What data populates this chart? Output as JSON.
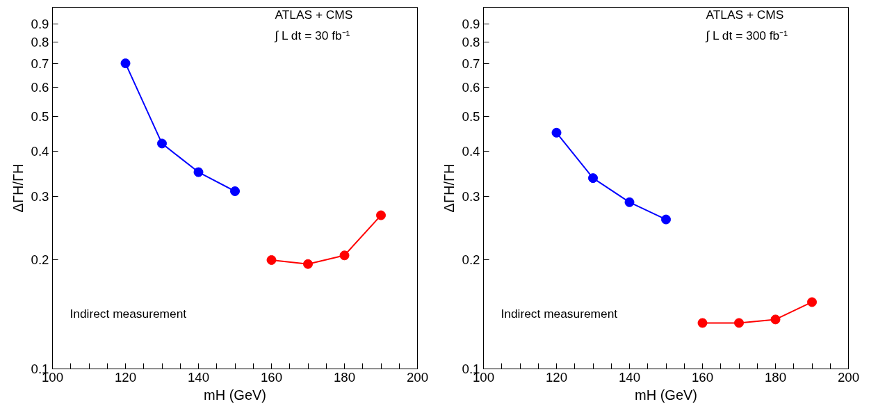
{
  "chart_data": [
    {
      "type": "line",
      "xlabel": "mH (GeV)",
      "ylabel": "ΔΓH/ΓH",
      "log": "y",
      "grid": false,
      "marker": "circle",
      "line_style": "solid",
      "xlim": [
        100,
        200
      ],
      "ylim": [
        0.1,
        1
      ],
      "xticks": [
        100,
        {
          "value": 105,
          "label": null
        },
        {
          "value": 110,
          "label": null
        },
        {
          "value": 115,
          "label": null
        },
        120,
        {
          "value": 125,
          "label": null
        },
        {
          "value": 130,
          "label": null
        },
        {
          "value": 135,
          "label": null
        },
        140,
        {
          "value": 145,
          "label": null
        },
        {
          "value": 150,
          "label": null
        },
        {
          "value": 155,
          "label": null
        },
        160,
        {
          "value": 165,
          "label": null
        },
        {
          "value": 170,
          "label": null
        },
        {
          "value": 175,
          "label": null
        },
        180,
        {
          "value": 185,
          "label": null
        },
        {
          "value": 190,
          "label": null
        },
        {
          "value": 195,
          "label": null
        },
        200
      ],
      "yticks": [
        0.1,
        0.2,
        0.3,
        0.4,
        0.5,
        0.6,
        0.7,
        0.8,
        0.9
      ],
      "annotations": [
        "ATLAS + CMS",
        "∫ L dt = 30 fb⁻¹",
        "Indirect measurement"
      ],
      "series": [
        {
          "color": "#0000ff",
          "x": [
            120,
            130,
            140,
            150
          ],
          "values": [
            0.7,
            0.42,
            0.35,
            0.31
          ]
        },
        {
          "color": "#ff0000",
          "x": [
            160,
            170,
            180,
            190
          ],
          "values": [
            0.2,
            0.195,
            0.206,
            0.266
          ]
        }
      ]
    },
    {
      "type": "line",
      "xlabel": "mH (GeV)",
      "ylabel": "ΔΓH/ΓH",
      "log": "y",
      "grid": false,
      "marker": "circle",
      "line_style": "solid",
      "xlim": [
        100,
        200
      ],
      "ylim": [
        0.1,
        1
      ],
      "xticks": [
        100,
        {
          "value": 105,
          "label": null
        },
        {
          "value": 110,
          "label": null
        },
        {
          "value": 115,
          "label": null
        },
        120,
        {
          "value": 125,
          "label": null
        },
        {
          "value": 130,
          "label": null
        },
        {
          "value": 135,
          "label": null
        },
        140,
        {
          "value": 145,
          "label": null
        },
        {
          "value": 150,
          "label": null
        },
        {
          "value": 155,
          "label": null
        },
        160,
        {
          "value": 165,
          "label": null
        },
        {
          "value": 170,
          "label": null
        },
        {
          "value": 175,
          "label": null
        },
        180,
        {
          "value": 185,
          "label": null
        },
        {
          "value": 190,
          "label": null
        },
        {
          "value": 195,
          "label": null
        },
        200
      ],
      "yticks": [
        0.1,
        0.2,
        0.3,
        0.4,
        0.5,
        0.6,
        0.7,
        0.8,
        0.9
      ],
      "annotations": [
        "ATLAS + CMS",
        "∫ L dt = 300 fb⁻¹",
        "Indirect measurement"
      ],
      "series": [
        {
          "color": "#0000ff",
          "x": [
            120,
            130,
            140,
            150
          ],
          "values": [
            0.45,
            0.337,
            0.289,
            0.259
          ]
        },
        {
          "color": "#ff0000",
          "x": [
            160,
            170,
            180,
            190
          ],
          "values": [
            0.134,
            0.134,
            0.137,
            0.153
          ]
        }
      ]
    }
  ]
}
